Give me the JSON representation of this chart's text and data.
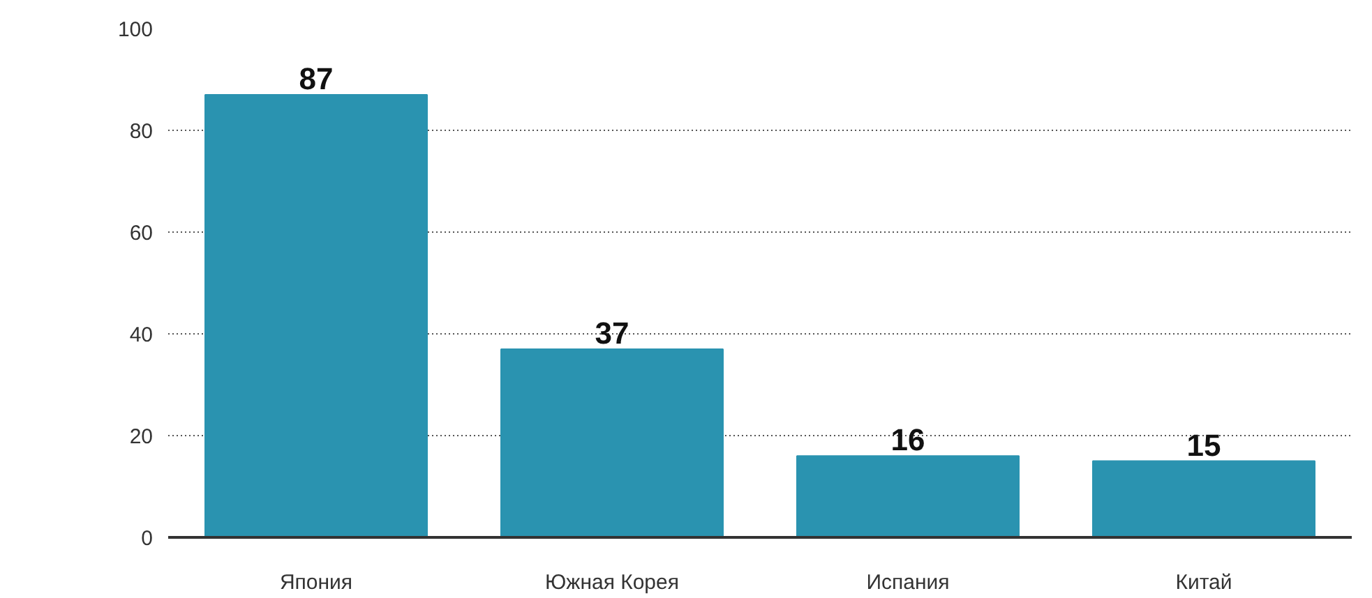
{
  "chart_data": {
    "type": "bar",
    "categories": [
      "Япония",
      "Южная Корея",
      "Испания",
      "Китай"
    ],
    "values": [
      87,
      37,
      16,
      15
    ],
    "color": "#2a93b0",
    "ylim": [
      0,
      100
    ],
    "yticks": [
      0,
      20,
      40,
      60,
      80,
      100
    ],
    "grid": "y",
    "data_labels": true
  }
}
